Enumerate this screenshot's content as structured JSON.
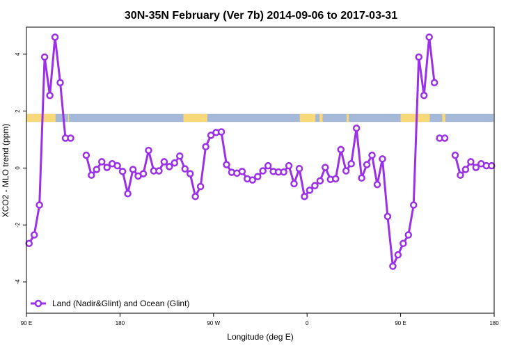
{
  "chart_data": {
    "type": "line",
    "title": "30N-35N February (Ver 7b)   2014-09-06 to 2017-03-31",
    "xlabel": "Longitude (deg E)",
    "ylabel": "XCO2 - MLO trend (ppm)",
    "xlim": [
      90,
      540
    ],
    "ylim": [
      -5.1,
      4.95
    ],
    "x_ticks": [
      {
        "value": 90,
        "label": "90 E"
      },
      {
        "value": 180,
        "label": "180"
      },
      {
        "value": 270,
        "label": "90 W"
      },
      {
        "value": 360,
        "label": "0"
      },
      {
        "value": 450,
        "label": "90 E"
      },
      {
        "value": 540,
        "label": "180"
      }
    ],
    "y_ticks": [
      {
        "value": -4,
        "label": "-4"
      },
      {
        "value": -2,
        "label": "-2"
      },
      {
        "value": 0,
        "label": "0"
      },
      {
        "value": 2,
        "label": "2"
      },
      {
        "value": 4,
        "label": "4"
      }
    ],
    "legend": {
      "position": "bottom-left",
      "label": "Land (Nadir&Glint) and Ocean (Glint)"
    },
    "colors": {
      "series": "#9b30e8",
      "ocean": "#a4b8d8",
      "land": "#f8d878",
      "frame": "#000000"
    },
    "land_ocean_strip": {
      "y_range": [
        1.62,
        1.9
      ],
      "land_segments": [
        [
          90,
          118
        ],
        [
          130,
          131
        ],
        [
          241,
          264
        ],
        [
          353,
          368
        ],
        [
          372,
          375
        ],
        [
          398,
          400
        ],
        [
          450,
          478
        ],
        [
          490,
          493
        ]
      ]
    },
    "series": [
      {
        "name": "Land (Nadir&Glint) and Ocean (Glint)",
        "segments": [
          {
            "x": [
              92.5,
              97.5,
              102.5,
              107.5,
              112.5,
              117.5,
              122.5,
              127.5,
              132.5,
              137.5
            ],
            "y": [
              -2.65,
              -2.35,
              -1.3,
              3.9,
              2.55,
              4.6,
              3.0,
              1.05,
              1.05,
              null
            ]
          },
          {
            "x": [
              147.5,
              152.5,
              157.5,
              162.5,
              167.5,
              172.5,
              177.5,
              182.5,
              187.5,
              192.5,
              197.5,
              202.5,
              207.5,
              212.5,
              217.5,
              222.5,
              227.5,
              232.5,
              237.5,
              242.5,
              247.5,
              252.5,
              257.5,
              262.5,
              267.5,
              272.5,
              277.5,
              282.5,
              287.5,
              292.5,
              297.5,
              302.5,
              307.5,
              312.5,
              317.5,
              322.5,
              327.5,
              332.5,
              337.5,
              342.5,
              347.5,
              352.5,
              357.5,
              362.5,
              367.5,
              372.5,
              377.5,
              382.5,
              387.5,
              392.5,
              397.5,
              402.5,
              407.5,
              412.5,
              417.5,
              422.5,
              427.5,
              432.5,
              437.5,
              442.5,
              447.5,
              452.5,
              457.5,
              462.5,
              467.5,
              472.5,
              477.5,
              482.5
            ],
            "y": [
              0.45,
              -0.25,
              -0.05,
              0.22,
              0.02,
              0.15,
              0.08,
              -0.12,
              -0.9,
              -0.05,
              -0.28,
              -0.2,
              0.62,
              -0.1,
              -0.1,
              0.22,
              0.05,
              0.18,
              0.42,
              -0.03,
              -0.2,
              -1.0,
              -0.65,
              0.75,
              1.15,
              1.25,
              1.27,
              0.12,
              -0.15,
              -0.18,
              -0.12,
              -0.38,
              -0.42,
              -0.3,
              -0.1,
              0.08,
              -0.12,
              -0.14,
              -0.14,
              0.08,
              -0.55,
              -0.02,
              -1.0,
              -0.78,
              -0.62,
              -0.45,
              0.02,
              -0.4,
              -0.38,
              0.65,
              -0.1,
              0.15,
              1.4,
              -0.35,
              0.12,
              0.45,
              -0.58,
              0.32,
              -1.7,
              -3.45,
              -3.05,
              -2.65,
              -2.35,
              -1.3,
              3.9,
              2.55,
              4.6,
              3.0
            ]
          },
          {
            "x": [
              487.5,
              492.5
            ],
            "y": [
              1.05,
              1.05
            ]
          },
          {
            "x": [
              502.5,
              507.5,
              512.5,
              517.5,
              522.5,
              527.5,
              532.5,
              537.5
            ],
            "y": [
              0.45,
              -0.25,
              -0.05,
              0.22,
              0.02,
              0.15,
              0.08,
              null
            ]
          },
          {
            "x": [
              537.5
            ],
            "y": [
              0.08
            ]
          }
        ]
      }
    ]
  }
}
